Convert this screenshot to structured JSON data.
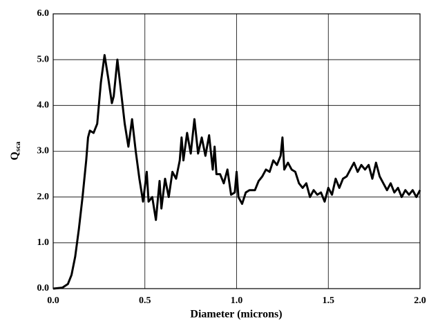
{
  "chart_data": {
    "type": "line",
    "xlabel": "Diameter (microns)",
    "ylabel": "Q",
    "ylabel_subscript": "sca",
    "xlim": [
      0,
      2.0
    ],
    "ylim": [
      0,
      6.0
    ],
    "xticks": [
      {
        "value": 0,
        "label": "0.0"
      },
      {
        "value": 0.5,
        "label": "0.5"
      },
      {
        "value": 1.0,
        "label": "1.0"
      },
      {
        "value": 1.5,
        "label": "1.5"
      },
      {
        "value": 2.0,
        "label": "2.0"
      }
    ],
    "yticks": [
      {
        "value": 0,
        "label": "0.0"
      },
      {
        "value": 1.0,
        "label": "1.0"
      },
      {
        "value": 2.0,
        "label": "2.0"
      },
      {
        "value": 3.0,
        "label": "3.0"
      },
      {
        "value": 4.0,
        "label": "4.0"
      },
      {
        "value": 5.0,
        "label": "5.0"
      },
      {
        "value": 6.0,
        "label": "6.0"
      }
    ],
    "grid": true,
    "x": [
      0.0,
      0.05,
      0.08,
      0.1,
      0.12,
      0.14,
      0.16,
      0.18,
      0.19,
      0.2,
      0.22,
      0.24,
      0.26,
      0.28,
      0.3,
      0.32,
      0.33,
      0.35,
      0.37,
      0.39,
      0.41,
      0.43,
      0.45,
      0.47,
      0.49,
      0.51,
      0.52,
      0.54,
      0.56,
      0.58,
      0.59,
      0.61,
      0.63,
      0.65,
      0.67,
      0.69,
      0.7,
      0.71,
      0.73,
      0.75,
      0.77,
      0.79,
      0.81,
      0.83,
      0.85,
      0.87,
      0.88,
      0.89,
      0.91,
      0.93,
      0.95,
      0.97,
      0.99,
      1.0,
      1.01,
      1.03,
      1.05,
      1.07,
      1.1,
      1.12,
      1.14,
      1.16,
      1.18,
      1.2,
      1.22,
      1.24,
      1.25,
      1.26,
      1.28,
      1.3,
      1.32,
      1.34,
      1.36,
      1.38,
      1.4,
      1.42,
      1.44,
      1.46,
      1.48,
      1.5,
      1.52,
      1.54,
      1.56,
      1.58,
      1.6,
      1.62,
      1.64,
      1.66,
      1.68,
      1.7,
      1.72,
      1.74,
      1.76,
      1.78,
      1.8,
      1.82,
      1.84,
      1.86,
      1.88,
      1.9,
      1.92,
      1.94,
      1.96,
      1.98,
      2.0
    ],
    "series": [
      {
        "color": "#000000",
        "values": [
          0,
          0.02,
          0.1,
          0.3,
          0.7,
          1.3,
          2.0,
          2.8,
          3.3,
          3.45,
          3.4,
          3.6,
          4.5,
          5.1,
          4.6,
          4.05,
          4.2,
          5.0,
          4.3,
          3.6,
          3.1,
          3.7,
          3.0,
          2.4,
          1.9,
          2.55,
          1.9,
          2.0,
          1.5,
          2.35,
          1.75,
          2.4,
          2.0,
          2.55,
          2.4,
          2.8,
          3.3,
          2.8,
          3.4,
          2.95,
          3.7,
          2.95,
          3.3,
          2.9,
          3.35,
          2.6,
          3.1,
          2.5,
          2.5,
          2.3,
          2.6,
          2.05,
          2.1,
          2.55,
          2.0,
          1.85,
          2.1,
          2.15,
          2.15,
          2.35,
          2.45,
          2.6,
          2.55,
          2.8,
          2.7,
          2.9,
          3.3,
          2.6,
          2.75,
          2.6,
          2.55,
          2.3,
          2.2,
          2.3,
          2.0,
          2.15,
          2.05,
          2.1,
          1.9,
          2.2,
          2.05,
          2.4,
          2.2,
          2.4,
          2.45,
          2.6,
          2.75,
          2.55,
          2.7,
          2.6,
          2.7,
          2.4,
          2.75,
          2.45,
          2.3,
          2.15,
          2.3,
          2.1,
          2.2,
          2.0,
          2.15,
          2.05,
          2.15,
          2.0,
          2.15
        ]
      }
    ]
  }
}
